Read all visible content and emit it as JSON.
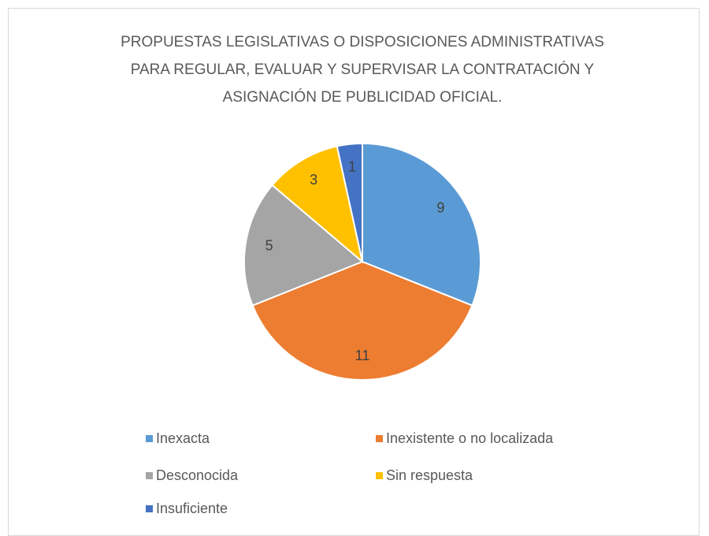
{
  "chart_data": {
    "type": "pie",
    "title": "PROPUESTAS LEGISLATIVAS O DISPOSICIONES ADMINISTRATIVAS PARA REGULAR, EVALUAR Y SUPERVISAR LA CONTRATACIÓN Y ASIGNACIÓN DE PUBLICIDAD OFICIAL.",
    "categories": [
      "Inexacta",
      "Inexistente o no localizada",
      "Desconocida",
      "Sin respuesta",
      "Insuficiente"
    ],
    "values": [
      9,
      11,
      5,
      3,
      1
    ],
    "colors": [
      "#5b9bd5",
      "#ed7d31",
      "#a5a5a5",
      "#ffc000",
      "#4472c4"
    ],
    "legend": "bottom"
  }
}
